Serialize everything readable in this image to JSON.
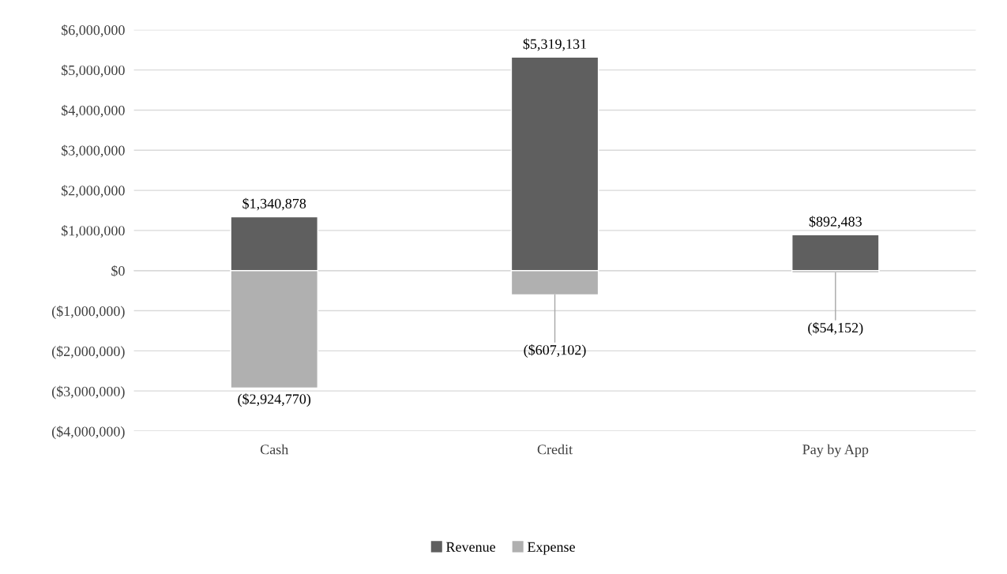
{
  "chart_data": {
    "type": "bar",
    "stacked": true,
    "categories": [
      "Cash",
      "Credit",
      "Pay by App"
    ],
    "series": [
      {
        "name": "Revenue",
        "color": "#5f5f5f",
        "values": [
          1340878,
          5319131,
          892483
        ],
        "value_labels": [
          "$1,340,878",
          "$5,319,131",
          "$892,483"
        ]
      },
      {
        "name": "Expense",
        "color": "#b0b0b0",
        "values": [
          -2924770,
          -607102,
          -54152
        ],
        "value_labels": [
          "($2,924,770)",
          "($607,102)",
          "($54,152)"
        ]
      }
    ],
    "ylim": [
      -4000000,
      6000000
    ],
    "yticks": [
      {
        "value": -4000000,
        "label": "($4,000,000)"
      },
      {
        "value": -3000000,
        "label": "($3,000,000)"
      },
      {
        "value": -2000000,
        "label": "($2,000,000)"
      },
      {
        "value": -1000000,
        "label": "($1,000,000)"
      },
      {
        "value": 0,
        "label": "$0"
      },
      {
        "value": 1000000,
        "label": "$1,000,000"
      },
      {
        "value": 2000000,
        "label": "$2,000,000"
      },
      {
        "value": 3000000,
        "label": "$3,000,000"
      },
      {
        "value": 4000000,
        "label": "$4,000,000"
      },
      {
        "value": 5000000,
        "label": "$5,000,000"
      },
      {
        "value": 6000000,
        "label": "$6,000,000"
      }
    ],
    "grid": "y",
    "legend": "bottom"
  }
}
